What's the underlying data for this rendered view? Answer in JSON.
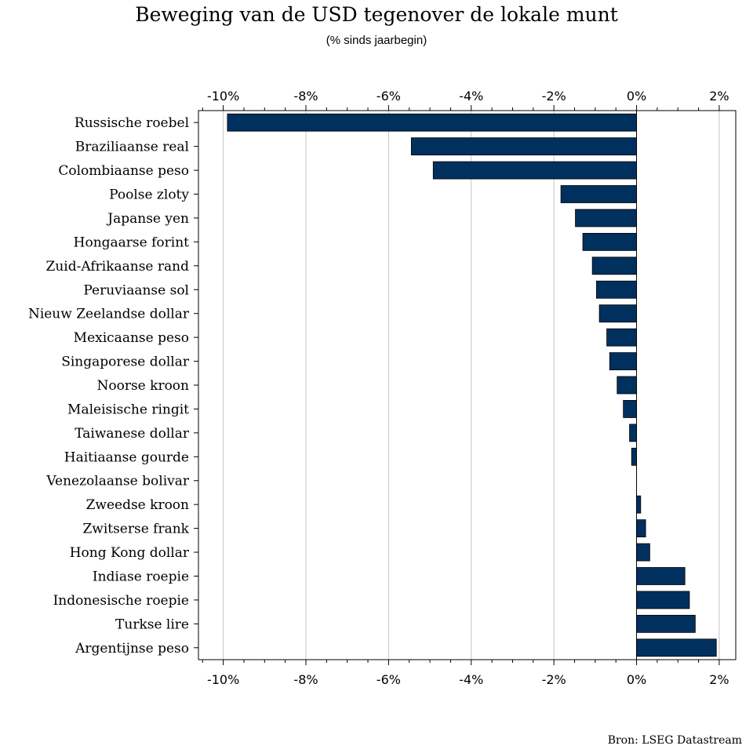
{
  "chart_data": {
    "type": "bar",
    "orientation": "horizontal",
    "title": "Beweging van de USD tegenover de lokale munt",
    "subtitle": "(% sinds jaarbegin)",
    "source": "Bron: LSEG Datastream",
    "xlim": [
      -10.6,
      2.4
    ],
    "xticks": [
      -10,
      -8,
      -6,
      -4,
      -2,
      0,
      2
    ],
    "xtick_labels": [
      "-10%",
      "-8%",
      "-6%",
      "-4%",
      "-2%",
      "0%",
      "2%"
    ],
    "grid": true,
    "bar_color": "#00305e",
    "categories": [
      "Russische roebel",
      "Braziliaanse real",
      "Colombiaanse peso",
      "Poolse zloty",
      "Japanse yen",
      "Hongaarse forint",
      "Zuid-Afrikaanse rand",
      "Peruviaanse sol",
      "Nieuw Zeelandse dollar",
      "Mexicaanse peso",
      "Singaporese dollar",
      "Noorse kroon",
      "Maleisische ringit",
      "Taiwanese dollar",
      "Haitiaanse gourde",
      "Venezolaanse bolivar",
      "Zweedse kroon",
      "Zwitserse frank",
      "Hong Kong dollar",
      "Indiase roepie",
      "Indonesische roepie",
      "Turkse lire",
      "Argentijnse peso"
    ],
    "values": [
      -9.9,
      -5.45,
      -4.92,
      -1.83,
      -1.48,
      -1.3,
      -1.07,
      -0.97,
      -0.9,
      -0.72,
      -0.65,
      -0.47,
      -0.32,
      -0.17,
      -0.12,
      0.0,
      0.1,
      0.22,
      0.32,
      1.17,
      1.28,
      1.42,
      1.93
    ]
  }
}
